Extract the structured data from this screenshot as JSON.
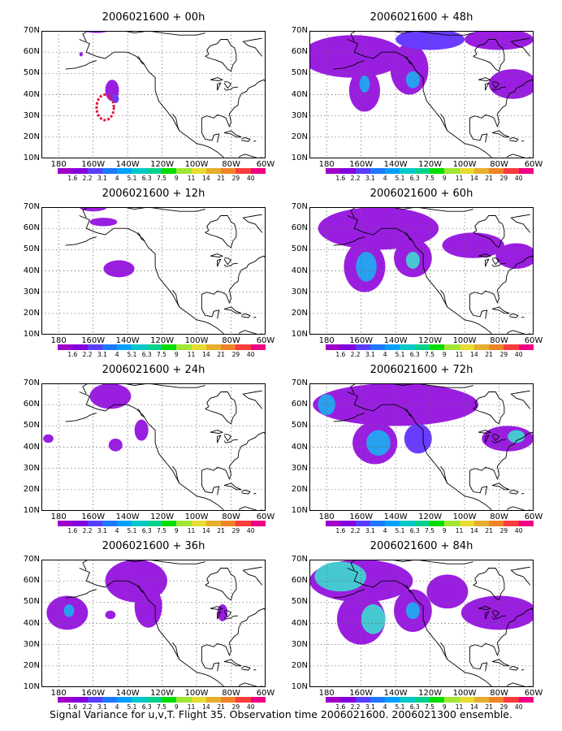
{
  "caption": "Signal Variance for u,v,T. Flight 35. Observation time 2006021600. 2006021300 ensemble.",
  "map_axes": {
    "lon_labels": [
      "180",
      "160W",
      "140W",
      "120W",
      "100W",
      "80W",
      "60W"
    ],
    "lat_labels": [
      "10N",
      "20N",
      "30N",
      "40N",
      "50N",
      "60N",
      "70N"
    ],
    "lon_range": [
      -190,
      -60
    ],
    "lat_range": [
      10,
      70
    ],
    "grid": "dotted"
  },
  "colorbar": {
    "labels": [
      "1.6",
      "2.2",
      "3.1",
      "4",
      "5.1",
      "6.3",
      "7.5",
      "9",
      "11",
      "14",
      "21",
      "29",
      "40"
    ],
    "colors": [
      "#a000c8",
      "#8200dc",
      "#5a3cff",
      "#1e78ff",
      "#00a0ff",
      "#00c8c8",
      "#00d28c",
      "#00dc00",
      "#a0e632",
      "#e6dc32",
      "#e6af2d",
      "#f08228",
      "#fa3c3c",
      "#f00082"
    ]
  },
  "panels": [
    {
      "title": "2006021600 + 00h",
      "blobs": [
        {
          "lon": -149,
          "lat": 42,
          "rlon": 4,
          "rlat": 5,
          "level": 0
        },
        {
          "lon": -147,
          "lat": 38,
          "rlon": 2,
          "rlat": 2,
          "level": 1
        },
        {
          "lon": -158,
          "lat": 72,
          "rlon": 10,
          "rlat": 3,
          "level": 0
        },
        {
          "lon": -167,
          "lat": 59,
          "rlon": 1,
          "rlat": 1,
          "level": 0
        }
      ],
      "ring": {
        "lon": -153,
        "lat": 34,
        "rlon": 5,
        "rlat": 6
      }
    },
    {
      "title": "2006021600 + 48h",
      "blobs": [
        {
          "lon": -165,
          "lat": 58,
          "rlon": 30,
          "rlat": 10,
          "level": 0
        },
        {
          "lon": -158,
          "lat": 42,
          "rlon": 9,
          "rlat": 10,
          "level": 0
        },
        {
          "lon": -158,
          "lat": 45,
          "rlon": 3,
          "rlat": 4,
          "level": 2
        },
        {
          "lon": -132,
          "lat": 52,
          "rlon": 11,
          "rlat": 12,
          "level": 0
        },
        {
          "lon": -130,
          "lat": 47,
          "rlon": 4,
          "rlat": 4,
          "level": 2
        },
        {
          "lon": -120,
          "lat": 66,
          "rlon": 20,
          "rlat": 5,
          "level": 1
        },
        {
          "lon": -80,
          "lat": 66,
          "rlon": 20,
          "rlat": 5,
          "level": 0
        },
        {
          "lon": -72,
          "lat": 45,
          "rlon": 14,
          "rlat": 7,
          "level": 0
        }
      ]
    },
    {
      "title": "2006021600 + 12h",
      "blobs": [
        {
          "lon": -145,
          "lat": 41,
          "rlon": 9,
          "rlat": 4,
          "level": 0
        },
        {
          "lon": -154,
          "lat": 63,
          "rlon": 8,
          "rlat": 2,
          "level": 0
        },
        {
          "lon": -160,
          "lat": 70,
          "rlon": 8,
          "rlat": 2,
          "level": 0
        }
      ]
    },
    {
      "title": "2006021600 + 60h",
      "blobs": [
        {
          "lon": -150,
          "lat": 60,
          "rlon": 35,
          "rlat": 10,
          "level": 0
        },
        {
          "lon": -158,
          "lat": 42,
          "rlon": 12,
          "rlat": 12,
          "level": 0
        },
        {
          "lon": -157,
          "lat": 42,
          "rlon": 6,
          "rlat": 7,
          "level": 2
        },
        {
          "lon": -130,
          "lat": 46,
          "rlon": 11,
          "rlat": 9,
          "level": 0
        },
        {
          "lon": -130,
          "lat": 45,
          "rlon": 4,
          "rlat": 4,
          "level": 3
        },
        {
          "lon": -95,
          "lat": 52,
          "rlon": 18,
          "rlat": 6,
          "level": 0
        },
        {
          "lon": -70,
          "lat": 47,
          "rlon": 12,
          "rlat": 6,
          "level": 0
        }
      ]
    },
    {
      "title": "2006021600 + 24h",
      "blobs": [
        {
          "lon": -150,
          "lat": 64,
          "rlon": 12,
          "rlat": 6,
          "level": 0
        },
        {
          "lon": -132,
          "lat": 48,
          "rlon": 4,
          "rlat": 5,
          "level": 0
        },
        {
          "lon": -147,
          "lat": 41,
          "rlon": 4,
          "rlat": 3,
          "level": 0
        },
        {
          "lon": -186,
          "lat": 44,
          "rlon": 3,
          "rlat": 2,
          "level": 0
        }
      ]
    },
    {
      "title": "2006021600 + 72h",
      "blobs": [
        {
          "lon": -140,
          "lat": 60,
          "rlon": 48,
          "rlat": 10,
          "level": 0
        },
        {
          "lon": -180,
          "lat": 60,
          "rlon": 5,
          "rlat": 5,
          "level": 2
        },
        {
          "lon": -152,
          "lat": 42,
          "rlon": 13,
          "rlat": 10,
          "level": 0
        },
        {
          "lon": -150,
          "lat": 42,
          "rlon": 7,
          "rlat": 6,
          "level": 2
        },
        {
          "lon": -127,
          "lat": 44,
          "rlon": 8,
          "rlat": 7,
          "level": 1
        },
        {
          "lon": -75,
          "lat": 44,
          "rlon": 15,
          "rlat": 6,
          "level": 0
        },
        {
          "lon": -70,
          "lat": 45,
          "rlon": 5,
          "rlat": 3,
          "level": 3
        }
      ]
    },
    {
      "title": "2006021600 + 36h",
      "blobs": [
        {
          "lon": -135,
          "lat": 60,
          "rlon": 18,
          "rlat": 10,
          "level": 0
        },
        {
          "lon": -128,
          "lat": 48,
          "rlon": 8,
          "rlat": 10,
          "level": 0
        },
        {
          "lon": -175,
          "lat": 45,
          "rlon": 12,
          "rlat": 8,
          "level": 0
        },
        {
          "lon": -174,
          "lat": 46,
          "rlon": 3,
          "rlat": 3,
          "level": 2
        },
        {
          "lon": -150,
          "lat": 44,
          "rlon": 3,
          "rlat": 2,
          "level": 0
        },
        {
          "lon": -85,
          "lat": 45,
          "rlon": 3,
          "rlat": 4,
          "level": 0
        }
      ]
    },
    {
      "title": "2006021600 + 84h",
      "blobs": [
        {
          "lon": -160,
          "lat": 60,
          "rlon": 30,
          "rlat": 10,
          "level": 0
        },
        {
          "lon": -172,
          "lat": 62,
          "rlon": 15,
          "rlat": 7,
          "level": 3
        },
        {
          "lon": -160,
          "lat": 42,
          "rlon": 14,
          "rlat": 12,
          "level": 0
        },
        {
          "lon": -153,
          "lat": 42,
          "rlon": 7,
          "rlat": 7,
          "level": 3
        },
        {
          "lon": -130,
          "lat": 46,
          "rlon": 11,
          "rlat": 10,
          "level": 0
        },
        {
          "lon": -130,
          "lat": 46,
          "rlon": 4,
          "rlat": 4,
          "level": 2
        },
        {
          "lon": -110,
          "lat": 55,
          "rlon": 12,
          "rlat": 8,
          "level": 0
        },
        {
          "lon": -80,
          "lat": 45,
          "rlon": 22,
          "rlat": 8,
          "level": 0
        }
      ]
    }
  ]
}
